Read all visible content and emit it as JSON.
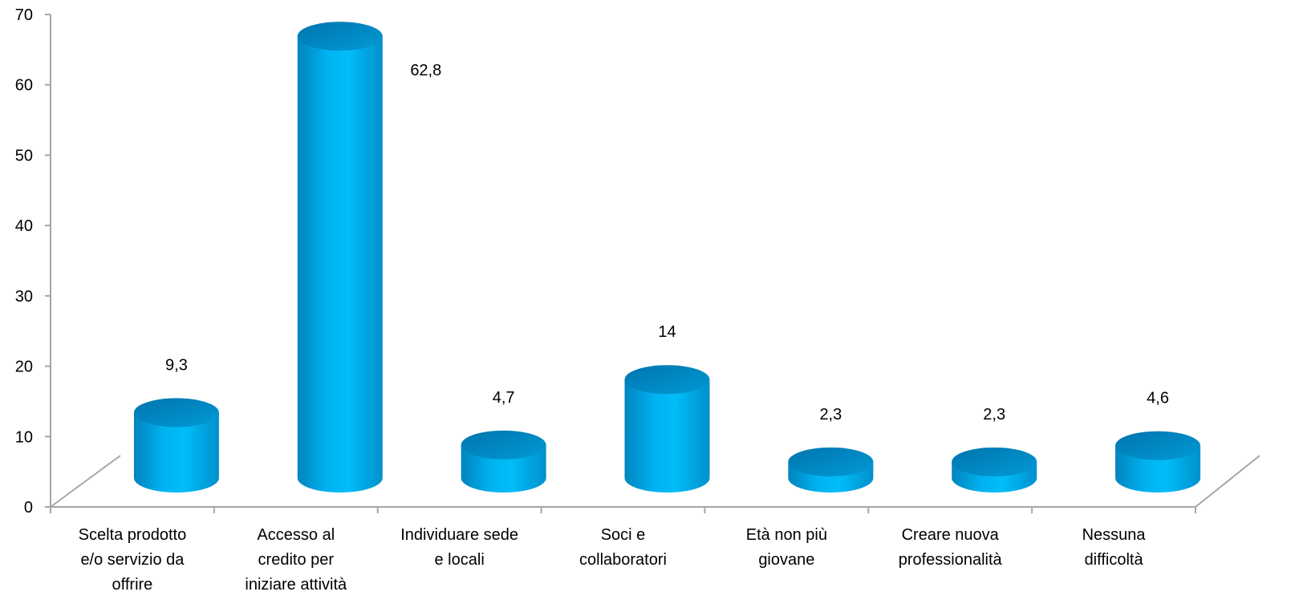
{
  "chart_data": {
    "type": "bar",
    "style": "3d-cylinder",
    "categories": [
      [
        "Scelta prodotto",
        "e/o servizio da",
        "offrire"
      ],
      [
        "Accesso al",
        "credito per",
        "iniziare attività"
      ],
      [
        "Individuare sede",
        "e locali"
      ],
      [
        "Soci e",
        "collaboratori"
      ],
      [
        "Età non più",
        "giovane"
      ],
      [
        "Creare nuova",
        "professionalità"
      ],
      [
        "Nessuna",
        "difficoltà"
      ]
    ],
    "values": [
      9.3,
      62.8,
      4.7,
      14,
      2.3,
      2.3,
      4.6
    ],
    "value_labels": [
      "9,3",
      "62,8",
      "4,7",
      "14",
      "2,3",
      "2,3",
      "4,6"
    ],
    "ylim": [
      0,
      70
    ],
    "yticks": [
      0,
      10,
      20,
      30,
      40,
      50,
      60,
      70
    ],
    "title": "",
    "xlabel": "",
    "ylabel": "",
    "grid": false,
    "legend": "none",
    "colors": {
      "bar_side": "#00a6e6",
      "bar_top": "#0093d0",
      "axis": "#a6a6a6"
    }
  }
}
